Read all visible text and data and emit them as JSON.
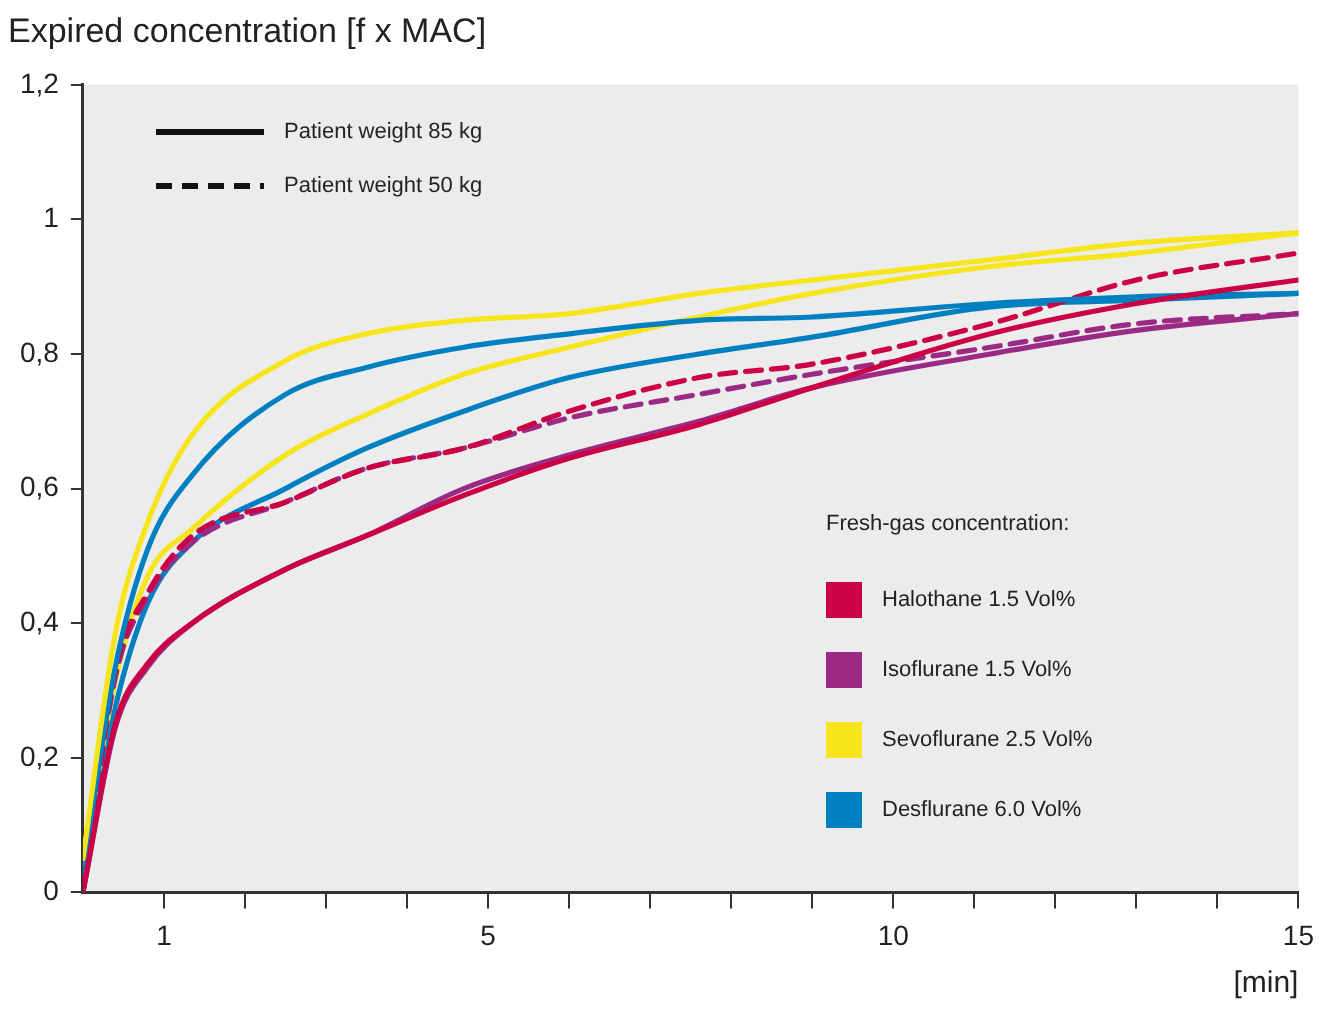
{
  "chart_data": {
    "type": "line",
    "title": "Expired concentration [f x MAC]",
    "xlabel": "[min]",
    "legend_title": "Fresh-gas concentration:",
    "legend": "bottom right",
    "marker": "none",
    "x": [
      0,
      0.4,
      0.8,
      1.35,
      2.5,
      3.5,
      4.7,
      6,
      7.6,
      9,
      11.2,
      13,
      15
    ],
    "xlim": [
      0,
      15
    ],
    "ylim": [
      0,
      1.2
    ],
    "xticks": [
      {
        "value": 1,
        "label": "1"
      },
      {
        "value": 2,
        "label": null
      },
      {
        "value": 3,
        "label": null
      },
      {
        "value": 4,
        "label": null
      },
      {
        "value": 5,
        "label": "5"
      },
      {
        "value": 6,
        "label": null
      },
      {
        "value": 7,
        "label": null
      },
      {
        "value": 8,
        "label": null
      },
      {
        "value": 9,
        "label": null
      },
      {
        "value": 10,
        "label": "10"
      },
      {
        "value": 11,
        "label": null
      },
      {
        "value": 12,
        "label": null
      },
      {
        "value": 13,
        "label": null
      },
      {
        "value": 14,
        "label": null
      },
      {
        "value": 15,
        "label": "15"
      }
    ],
    "yticks": [
      0,
      {
        "value": 0.2,
        "label": "0,2"
      },
      {
        "value": 0.4,
        "label": "0,4"
      },
      {
        "value": 0.6,
        "label": "0,6"
      },
      {
        "value": 0.8,
        "label": "0,8"
      },
      1,
      {
        "value": 1.2,
        "label": "1,2"
      }
    ],
    "annotations": [
      "Patient weight 85 kg",
      "Patient weight 50 kg"
    ],
    "series": [
      {
        "name": "Halothane 1.5 Vol%",
        "color": "#cc0044",
        "line_style": "solid",
        "values": [
          0,
          0.25,
          0.34,
          0.4,
          0.48,
          0.53,
          0.59,
          0.645,
          0.695,
          0.75,
          0.83,
          0.875,
          0.91
        ]
      },
      {
        "name": "Isoflurane 1.5 Vol%",
        "color": "#9b2a85",
        "line_style": "solid",
        "values": [
          0,
          0.245,
          0.335,
          0.4,
          0.48,
          0.53,
          0.6,
          0.65,
          0.7,
          0.75,
          0.8,
          0.835,
          0.86
        ]
      },
      {
        "name": "Sevoflurane 2.5 Vol%",
        "color": "#f7e51c",
        "line_style": "solid",
        "values": [
          0.05,
          0.385,
          0.55,
          0.68,
          0.79,
          0.83,
          0.85,
          0.86,
          0.89,
          0.91,
          0.94,
          0.965,
          0.98
        ]
      },
      {
        "name": "Desflurane 6.0 Vol%",
        "color": "#0080c0",
        "line_style": "solid",
        "values": [
          0.03,
          0.335,
          0.51,
          0.62,
          0.74,
          0.78,
          0.81,
          0.83,
          0.85,
          0.855,
          0.875,
          0.885,
          0.89
        ]
      },
      {
        "color": "#cc0044",
        "line_style": "dashed",
        "values": [
          0,
          0.33,
          0.445,
          0.53,
          0.58,
          0.63,
          0.66,
          0.715,
          0.765,
          0.785,
          0.845,
          0.91,
          0.95
        ]
      },
      {
        "color": "#9b2a85",
        "line_style": "dashed",
        "values": [
          0,
          0.32,
          0.44,
          0.52,
          0.58,
          0.63,
          0.66,
          0.705,
          0.74,
          0.77,
          0.81,
          0.845,
          0.86
        ]
      },
      {
        "color": "#f7e51c",
        "line_style": "solid",
        "values": [
          0.04,
          0.315,
          0.47,
          0.54,
          0.65,
          0.71,
          0.77,
          0.81,
          0.855,
          0.89,
          0.93,
          0.95,
          0.98
        ]
      },
      {
        "color": "#0080c0",
        "line_style": "solid",
        "values": [
          0.02,
          0.275,
          0.43,
          0.52,
          0.6,
          0.66,
          0.715,
          0.765,
          0.8,
          0.825,
          0.87,
          0.88,
          0.89
        ]
      }
    ]
  }
}
